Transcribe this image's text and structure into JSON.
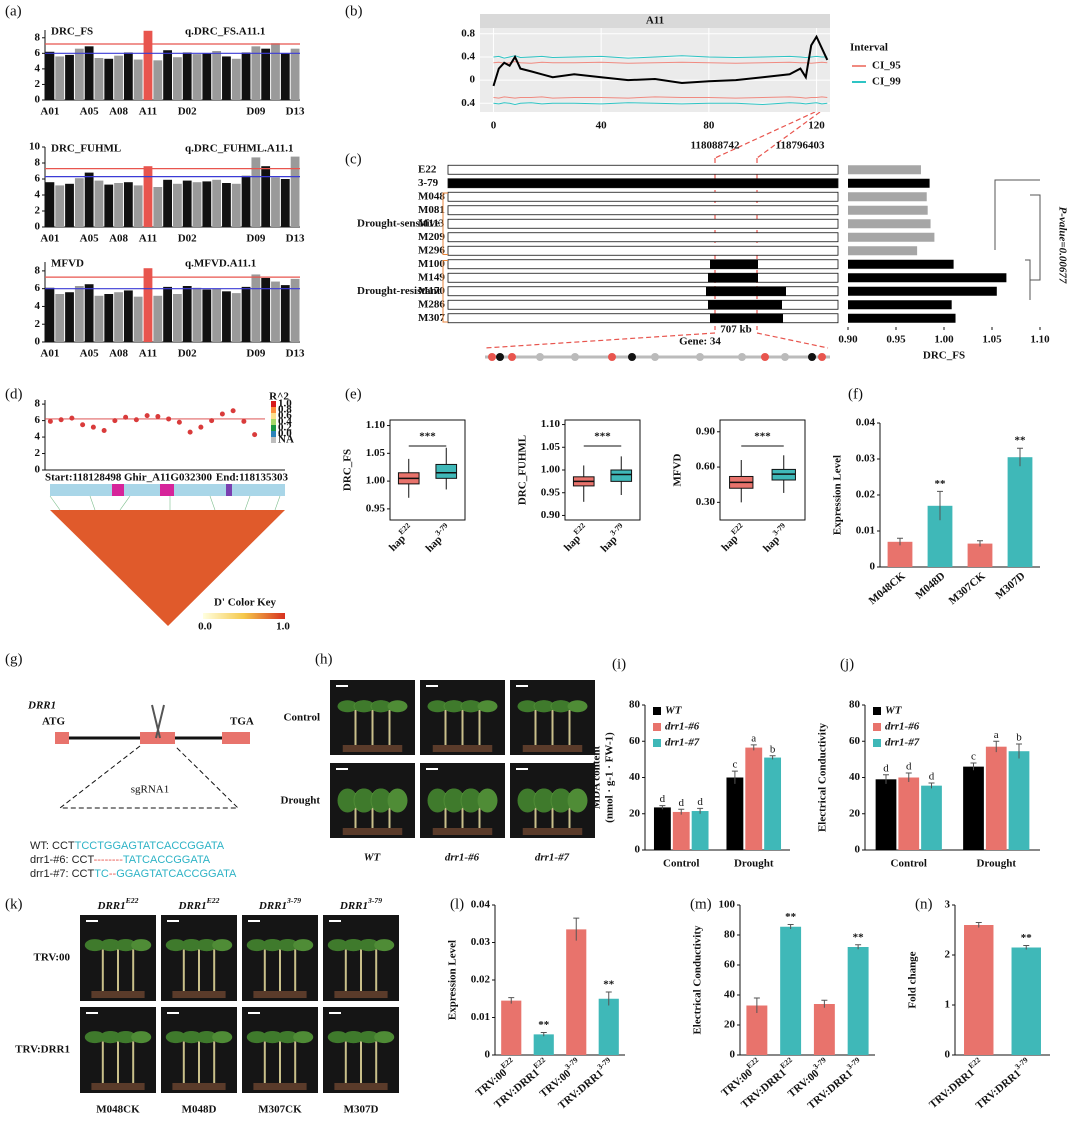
{
  "chart_data": [
    {
      "type": "manhattan",
      "panel": "(a)",
      "title": "DRC_FS",
      "annotation": "q.DRC_FS.A11.1",
      "categories": [
        "A01",
        null,
        null,
        null,
        "A05",
        null,
        null,
        "A08",
        null,
        null,
        "A11",
        null,
        null,
        null,
        "D02",
        null,
        null,
        null,
        null,
        null,
        null,
        "D09",
        null,
        null,
        null,
        "D13"
      ],
      "values": [
        6.2,
        5.6,
        5.8,
        6.6,
        6.9,
        5.4,
        5.3,
        5.7,
        6.1,
        5.2,
        8.9,
        5.1,
        6.4,
        5.5,
        6.1,
        5.9,
        6.0,
        6.3,
        5.6,
        5.3,
        6.1,
        6.9,
        6.6,
        7.3,
        6.0,
        6.6
      ],
      "colors": [
        "#111111",
        "#9a9a9a"
      ],
      "highlight": "A11",
      "highlight_color": "#e8554e",
      "thresholds": [
        {
          "value": 7.2,
          "color": "#e8554e"
        },
        {
          "value": 6.0,
          "color": "#3b3bd6"
        }
      ],
      "ylim": [
        0,
        9
      ],
      "yticks": [
        0,
        2,
        4,
        6,
        8
      ]
    },
    {
      "type": "manhattan",
      "title": "DRC_FUHML",
      "annotation": "q.DRC_FUHML.A11.1",
      "categories": [
        "A01",
        null,
        null,
        null,
        "A05",
        null,
        null,
        "A08",
        null,
        null,
        "A11",
        null,
        null,
        null,
        "D02",
        null,
        null,
        null,
        null,
        null,
        null,
        "D09",
        null,
        null,
        null,
        "D13"
      ],
      "values": [
        5.6,
        5.2,
        5.4,
        6.1,
        6.8,
        5.8,
        5.3,
        5.5,
        5.6,
        5.2,
        7.6,
        5.0,
        5.9,
        5.4,
        5.8,
        5.6,
        5.7,
        5.9,
        5.5,
        5.4,
        6.4,
        8.7,
        7.6,
        6.2,
        6.0,
        8.8
      ],
      "colors": [
        "#111111",
        "#9a9a9a"
      ],
      "highlight": "A11",
      "highlight_color": "#e8554e",
      "thresholds": [
        {
          "value": 7.3,
          "color": "#e8554e"
        },
        {
          "value": 6.3,
          "color": "#3b3bd6"
        }
      ],
      "ylim": [
        0,
        10
      ],
      "yticks": [
        0,
        2,
        4,
        6,
        8,
        10
      ]
    },
    {
      "type": "manhattan",
      "title": "MFVD",
      "annotation": "q.MFVD.A11.1",
      "categories": [
        "A01",
        null,
        null,
        null,
        "A05",
        null,
        null,
        "A08",
        null,
        null,
        "A11",
        null,
        null,
        null,
        "D02",
        null,
        null,
        null,
        null,
        null,
        null,
        "D09",
        null,
        null,
        null,
        "D13"
      ],
      "values": [
        6.1,
        5.4,
        5.6,
        6.3,
        6.5,
        5.2,
        5.4,
        5.6,
        5.8,
        5.1,
        8.3,
        5.2,
        6.2,
        5.4,
        6.3,
        6.1,
        5.9,
        6.0,
        5.7,
        5.5,
        6.2,
        7.6,
        7.2,
        6.8,
        6.4,
        7.1
      ],
      "colors": [
        "#111111",
        "#9a9a9a"
      ],
      "highlight": "A11",
      "highlight_color": "#e8554e",
      "thresholds": [
        {
          "value": 7.3,
          "color": "#e8554e"
        },
        {
          "value": 6.0,
          "color": "#3b3bd6"
        }
      ],
      "ylim": [
        0,
        9
      ],
      "yticks": [
        0,
        2,
        4,
        6,
        8
      ]
    },
    {
      "type": "line",
      "panel": "(b)",
      "title": "A11",
      "grid": true,
      "x": [
        0,
        2,
        4,
        6,
        8,
        10,
        14,
        18,
        22,
        30,
        40,
        50,
        60,
        70,
        80,
        90,
        100,
        110,
        114,
        116,
        118,
        120,
        122,
        124
      ],
      "values": [
        -0.1,
        0.2,
        0.3,
        0.25,
        0.4,
        0.2,
        0.15,
        0.1,
        0.05,
        0.1,
        0.05,
        0.0,
        0.02,
        -0.05,
        -0.02,
        0.0,
        0.05,
        0.1,
        0.2,
        0.05,
        0.6,
        0.75,
        0.55,
        0.35
      ],
      "color": "#000000",
      "legend_title": "Interval",
      "series": [
        {
          "name": "CI_95",
          "color": "#f08a80",
          "values": [
            0.3,
            0.31,
            0.29,
            0.3,
            0.32,
            0.3,
            0.29,
            0.31,
            0.3,
            0.3,
            0.31,
            0.29,
            0.3,
            0.31,
            0.3,
            0.29,
            0.3,
            0.31,
            0.3,
            0.3,
            0.29,
            0.3,
            0.31,
            0.3
          ],
          "lower": [
            -0.3,
            -0.31,
            -0.29,
            -0.3,
            -0.31,
            -0.3,
            -0.3,
            -0.29,
            -0.31,
            -0.3,
            -0.3,
            -0.31,
            -0.29,
            -0.3,
            -0.3,
            -0.31,
            -0.3,
            -0.29,
            -0.3,
            -0.31,
            -0.3,
            -0.3,
            -0.29,
            -0.3
          ]
        },
        {
          "name": "CI_99",
          "color": "#2ec4c4",
          "values": [
            0.4,
            0.41,
            0.38,
            0.4,
            0.42,
            0.39,
            0.4,
            0.41,
            0.39,
            0.4,
            0.41,
            0.38,
            0.4,
            0.42,
            0.4,
            0.39,
            0.4,
            0.41,
            0.4,
            0.39,
            0.4,
            0.41,
            0.4,
            0.4
          ],
          "lower": [
            -0.4,
            -0.41,
            -0.39,
            -0.4,
            -0.42,
            -0.4,
            -0.39,
            -0.41,
            -0.4,
            -0.4,
            -0.41,
            -0.39,
            -0.4,
            -0.41,
            -0.4,
            -0.4,
            -0.42,
            -0.39,
            -0.4,
            -0.41,
            -0.4,
            -0.39,
            -0.41,
            -0.4
          ]
        }
      ],
      "xlim": [
        -5,
        125
      ],
      "xticks": [
        0,
        40,
        80,
        120
      ],
      "ylim": [
        -0.55,
        0.9
      ],
      "yticks": [
        {
          "value": -0.4,
          "label": "0.4"
        },
        0,
        0.4,
        0.8
      ]
    },
    {
      "type": "bar",
      "horizontal": true,
      "panel": "(c)",
      "xlabel": "DRC_FS",
      "categories": [
        "E22",
        "3-79",
        "M048",
        "M081",
        "M113",
        "M209",
        "M296",
        "M100",
        "M149",
        "M170",
        "M286",
        "M307"
      ],
      "values": [
        0.976,
        0.985,
        0.982,
        0.983,
        0.986,
        0.99,
        0.972,
        1.01,
        1.065,
        1.055,
        1.008,
        1.012
      ],
      "colors": [
        "#a6a6a6",
        "#000000",
        "#a6a6a6",
        "#a6a6a6",
        "#a6a6a6",
        "#a6a6a6",
        "#a6a6a6",
        "#000000",
        "#000000",
        "#000000",
        "#000000",
        "#000000"
      ],
      "groups": [
        {
          "label": "Drought-sensitive",
          "color": "#e8863c"
        },
        {
          "label": "Drought-resistant",
          "color": "#e8863c"
        }
      ],
      "region_start": "118088742",
      "region_end": "118796403",
      "region_size": "707 kb",
      "gene_count": "Gene: 34",
      "p_value": "P-value=0.00677",
      "xlim": [
        0.9,
        1.1
      ],
      "xticks": [
        {
          "value": 0.9,
          "label": "0.90"
        },
        0.95,
        {
          "value": 1,
          "label": "1.00"
        },
        1.05,
        {
          "value": 1.1,
          "label": "1.10"
        }
      ]
    },
    {
      "type": "scatter",
      "panel": "(d)",
      "color": "#d93b3b",
      "values": [
        5.9,
        6.1,
        6.3,
        5.5,
        5.2,
        4.8,
        6.0,
        6.4,
        6.1,
        6.6,
        6.5,
        6.2,
        5.8,
        4.6,
        5.2,
        6.0,
        6.8,
        7.2,
        5.9,
        4.3
      ],
      "threshold": 6.2,
      "ylim": [
        0,
        8.5
      ],
      "yticks": [
        0,
        2,
        4,
        6,
        8
      ],
      "legend_title": "R^2",
      "legend_labels": [
        "1.0",
        "0.8",
        "0.6",
        "0.4",
        "0.2",
        "0.0",
        "NA"
      ],
      "legend_colors": [
        "#d7191c",
        "#fd8d3c",
        "#fee08b",
        "#a6d96a",
        "#1a9641",
        "#2b83ba",
        "#bdbdbd"
      ],
      "start": "Start:118128498",
      "gene": "Ghir_A11G032300",
      "end": "End:118135303",
      "color_key_title": "D' Color Key",
      "color_key_ticks": [
        "0.0",
        "1.0"
      ]
    },
    {
      "type": "box",
      "panel": "(e)",
      "ylabel": "DRC_FS",
      "significance": "***",
      "categories": [
        {
          "text": "hap",
          "sup": "E22"
        },
        {
          "text": "hap",
          "sup": "3-79"
        }
      ],
      "boxes": [
        {
          "min": 0.97,
          "q1": 0.995,
          "median": 1.005,
          "q3": 1.015,
          "max": 1.04,
          "color": "#e8736c"
        },
        {
          "min": 0.985,
          "q1": 1.005,
          "median": 1.015,
          "q3": 1.03,
          "max": 1.06,
          "color": "#3fb8b8"
        }
      ],
      "ylim": [
        0.93,
        1.11
      ],
      "yticks": [
        0.95,
        {
          "value": 1,
          "label": "1.00"
        },
        1.05,
        {
          "value": 1.1,
          "label": "1.10"
        }
      ]
    },
    {
      "type": "box",
      "ylabel": "DRC_FUHML",
      "significance": "***",
      "categories": [
        {
          "text": "hap",
          "sup": "E22"
        },
        {
          "text": "hap",
          "sup": "3-79"
        }
      ],
      "boxes": [
        {
          "min": 0.93,
          "q1": 0.965,
          "median": 0.975,
          "q3": 0.985,
          "max": 1.01,
          "color": "#e8736c"
        },
        {
          "min": 0.945,
          "q1": 0.975,
          "median": 0.99,
          "q3": 1.0,
          "max": 1.03,
          "color": "#3fb8b8"
        }
      ],
      "ylim": [
        0.89,
        1.11
      ],
      "yticks": [
        {
          "value": 0.9,
          "label": "0.90"
        },
        0.95,
        {
          "value": 1,
          "label": "1.00"
        },
        1.05,
        {
          "value": 1.1,
          "label": "1.10"
        }
      ]
    },
    {
      "type": "box",
      "ylabel": "MFVD",
      "significance": "***",
      "categories": [
        {
          "text": "hap",
          "sup": "E22"
        },
        {
          "text": "hap",
          "sup": "3-79"
        }
      ],
      "boxes": [
        {
          "min": 0.3,
          "q1": 0.42,
          "median": 0.47,
          "q3": 0.52,
          "max": 0.66,
          "color": "#e8736c"
        },
        {
          "min": 0.38,
          "q1": 0.49,
          "median": 0.54,
          "q3": 0.58,
          "max": 0.7,
          "color": "#3fb8b8"
        }
      ],
      "ylim": [
        0.15,
        1.0
      ],
      "yticks": [
        {
          "value": 0.3,
          "label": "0.30"
        },
        {
          "value": 0.6,
          "label": "0.60"
        },
        {
          "value": 0.9,
          "label": "0.90"
        }
      ]
    },
    {
      "type": "bar",
      "panel": "(f)",
      "ylabel": [
        "Expression Level"
      ],
      "categories": [
        "M048CK",
        "M048D",
        "M307CK",
        "M307D"
      ],
      "values": [
        0.007,
        0.017,
        0.0065,
        0.0305
      ],
      "errors": [
        0.001,
        0.004,
        0.0008,
        0.0025
      ],
      "colors": [
        "#e8736c",
        "#3fb8b8",
        "#e8736c",
        "#3fb8b8"
      ],
      "significance": [
        null,
        "**",
        null,
        "**"
      ],
      "ylim": [
        0,
        0.04
      ],
      "yticks": [
        0,
        0.01,
        0.02,
        0.03,
        0.04
      ]
    },
    {
      "type": "bar",
      "panel": "(i)",
      "ylabel": [
        "MDA content",
        "(nmol · g-1 · FW-1)"
      ],
      "categories": [
        "Control",
        "Drought"
      ],
      "legend": "top-left",
      "series": [
        {
          "name": "WT",
          "color": "#000000",
          "values": [
            23.5,
            40
          ],
          "errors": [
            1,
            3.5
          ],
          "letters": [
            "d",
            "c"
          ]
        },
        {
          "name": "drr1-#6",
          "color": "#e8736c",
          "values": [
            21,
            56.5
          ],
          "errors": [
            1.5,
            1.5
          ],
          "letters": [
            "d",
            "a"
          ]
        },
        {
          "name": "drr1-#7",
          "color": "#3fb8b8",
          "values": [
            21.5,
            51
          ],
          "errors": [
            1.5,
            1
          ],
          "letters": [
            "d",
            "b"
          ]
        }
      ],
      "ylim": [
        0,
        80
      ],
      "yticks": [
        0,
        20,
        40,
        60,
        80
      ]
    },
    {
      "type": "bar",
      "panel": "(j)",
      "ylabel": [
        "Electrical Conductivity"
      ],
      "categories": [
        "Control",
        "Drought"
      ],
      "legend": "top-left",
      "series": [
        {
          "name": "WT",
          "color": "#000000",
          "values": [
            39,
            46
          ],
          "errors": [
            2.5,
            2
          ],
          "letters": [
            "d",
            "c"
          ]
        },
        {
          "name": "drr1-#6",
          "color": "#e8736c",
          "values": [
            40,
            57
          ],
          "errors": [
            2.5,
            3
          ],
          "letters": [
            "d",
            "a"
          ]
        },
        {
          "name": "drr1-#7",
          "color": "#3fb8b8",
          "values": [
            35.5,
            54.5
          ],
          "errors": [
            1.5,
            4
          ],
          "letters": [
            "d",
            "b"
          ]
        }
      ],
      "ylim": [
        0,
        80
      ],
      "yticks": [
        0,
        20,
        40,
        60,
        80
      ]
    },
    {
      "type": "bar",
      "panel": "(l)",
      "ylabel": [
        "Expression Level"
      ],
      "categories": [
        {
          "text": "TRV:00",
          "sup": "E22"
        },
        {
          "text": "TRV:DRR1",
          "sup": "E22"
        },
        {
          "text": "TRV:00",
          "sup": "3-79"
        },
        {
          "text": "TRV:DRR1",
          "sup": "3-79"
        }
      ],
      "values": [
        0.0145,
        0.0055,
        0.0335,
        0.015
      ],
      "errors": [
        0.0008,
        0.0005,
        0.003,
        0.0018
      ],
      "colors": [
        "#e8736c",
        "#3fb8b8",
        "#e8736c",
        "#3fb8b8"
      ],
      "significance": [
        null,
        "**",
        null,
        "**"
      ],
      "ylim": [
        0,
        0.04
      ],
      "yticks": [
        0,
        0.01,
        0.02,
        0.03,
        0.04
      ]
    },
    {
      "type": "bar",
      "panel": "(m)",
      "ylabel": [
        "Electrical Conductivity"
      ],
      "categories": [
        {
          "text": "TRV:00",
          "sup": "E22"
        },
        {
          "text": "TRV:DRR1",
          "sup": "E22"
        },
        {
          "text": "TRV:00",
          "sup": "3-79"
        },
        {
          "text": "TRV:DRR1",
          "sup": "3-79"
        }
      ],
      "values": [
        33,
        85.5,
        34,
        72
      ],
      "errors": [
        5,
        1.5,
        2.5,
        1.5
      ],
      "colors": [
        "#e8736c",
        "#3fb8b8",
        "#e8736c",
        "#3fb8b8"
      ],
      "significance": [
        null,
        "**",
        null,
        "**"
      ],
      "ylim": [
        0,
        100
      ],
      "yticks": [
        0,
        20,
        40,
        60,
        80,
        100
      ]
    },
    {
      "type": "bar",
      "panel": "(n)",
      "ylabel": [
        "Fold change"
      ],
      "categories": [
        {
          "text": "TRV:DRR1",
          "sup": "E22"
        },
        {
          "text": "TRV:DRR1",
          "sup": "3-79"
        }
      ],
      "values": [
        2.6,
        2.15
      ],
      "errors": [
        0.05,
        0.04
      ],
      "colors": [
        "#e8736c",
        "#3fb8b8"
      ],
      "significance": [
        null,
        "**"
      ],
      "ylim": [
        0,
        3
      ],
      "yticks": [
        0,
        1,
        2,
        3
      ]
    }
  ],
  "gene_diagram": {
    "panel": "(g)",
    "gene": "DRR1",
    "start_codon": "ATG",
    "stop_codon": "TGA",
    "guide": "sgRNA1",
    "sequences": [
      [
        {
          "text": "WT: CCT",
          "color": "#222222"
        },
        {
          "text": "TCCTGGAGTATCACCGGATA",
          "color": "#2eb3c6"
        }
      ],
      [
        {
          "text": "drr1-#6: CCT",
          "color": "#222222"
        },
        {
          "text": "--------",
          "color": "#e8554e"
        },
        {
          "text": "TATCACCGGATA",
          "color": "#2eb3c6"
        }
      ],
      [
        {
          "text": "drr1-#7: CCT",
          "color": "#222222"
        },
        {
          "text": "TC",
          "color": "#2eb3c6"
        },
        {
          "text": "--",
          "color": "#e8554e"
        },
        {
          "text": "GGAGTATCACCGGATA",
          "color": "#2eb3c6"
        }
      ]
    ]
  },
  "phenotype_photos": {
    "panel": "(h)",
    "rows": [
      "Control",
      "Drought"
    ],
    "columns": [
      "WT",
      "drr1-#6",
      "drr1-#7"
    ]
  },
  "vigs_photos": {
    "panel": "(k)",
    "rows": [
      "TRV:00",
      "TRV:DRR1"
    ],
    "columns": [
      {
        "text": "DRR1",
        "sup": "E22"
      },
      {
        "text": "DRR1",
        "sup": "E22"
      },
      {
        "text": "DRR1",
        "sup": "3-79"
      },
      {
        "text": "DRR1",
        "sup": "3-79"
      }
    ],
    "samples": [
      "M048CK",
      "M048D",
      "M307CK",
      "M307D"
    ]
  }
}
